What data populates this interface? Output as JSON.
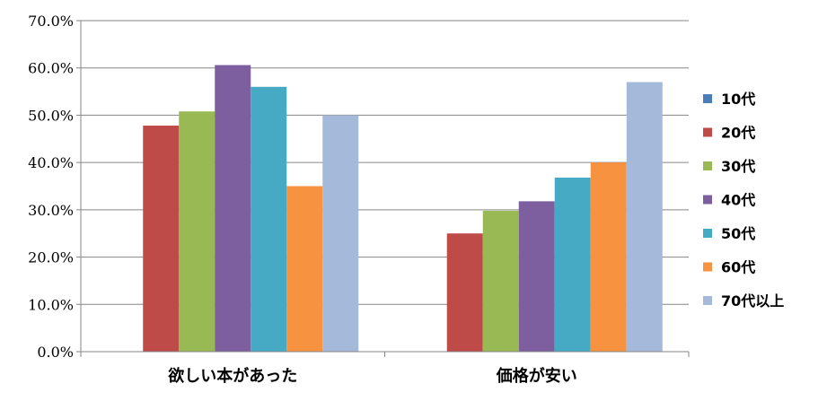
{
  "chart_data": {
    "type": "bar",
    "categories": [
      "欲しい本があった",
      "価格が安い"
    ],
    "series": [
      {
        "name": "10代",
        "color": "#4a7ebb",
        "values": [
          0,
          0
        ]
      },
      {
        "name": "20代",
        "color": "#be4b48",
        "values": [
          47.8,
          25.0
        ]
      },
      {
        "name": "30代",
        "color": "#98b954",
        "values": [
          50.8,
          29.8
        ]
      },
      {
        "name": "40代",
        "color": "#7d5fa0",
        "values": [
          60.6,
          31.8
        ]
      },
      {
        "name": "50代",
        "color": "#46aac5",
        "values": [
          56.0,
          36.8
        ]
      },
      {
        "name": "60代",
        "color": "#f69240",
        "values": [
          35.0,
          40.0
        ]
      },
      {
        "name": "70代以上",
        "color": "#a5b9db",
        "values": [
          50.0,
          57.0
        ]
      }
    ],
    "y_ticks": [
      "0.0%",
      "10.0%",
      "20.0%",
      "30.0%",
      "40.0%",
      "50.0%",
      "60.0%",
      "70.0%"
    ],
    "ylim": [
      0,
      70
    ],
    "grid": true,
    "legend": "right",
    "title": "",
    "xlabel": "",
    "ylabel": ""
  }
}
